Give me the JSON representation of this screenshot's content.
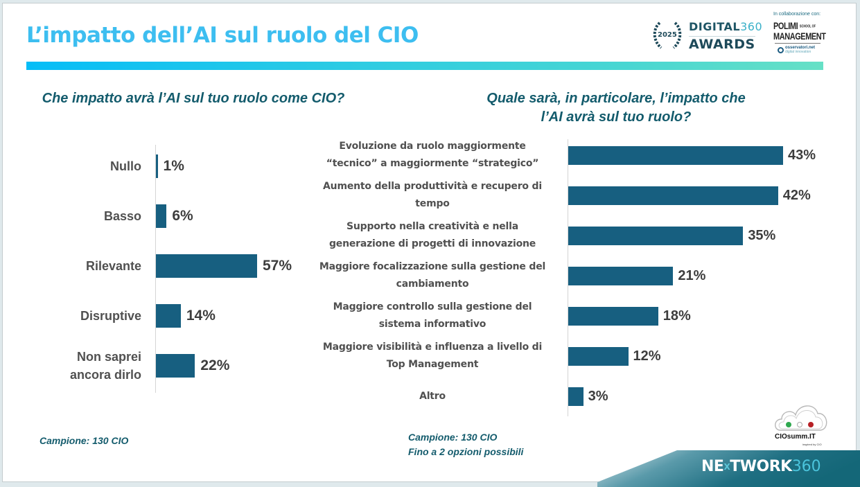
{
  "header": {
    "title": "L’impatto dell’AI sul ruolo del CIO",
    "awards_logo": {
      "year": "2025",
      "digital": "DIGITAL",
      "digital_num": "360",
      "awards": "AWARDS"
    },
    "collab": {
      "label": "In collaborazione con:",
      "polimi_line1": "POLIMI",
      "polimi_small": "SCHOOL OF",
      "polimi_line2": "MANAGEMENT",
      "osservatori": "osservatori.net",
      "osservatori_sub": "digital innovation"
    }
  },
  "colors": {
    "title": "#3dbef0",
    "question": "#135b6c",
    "bar": "#175f80",
    "category_text": "#505050",
    "value_text": "#3d3d3d"
  },
  "chart_data": [
    {
      "type": "bar",
      "orientation": "horizontal",
      "title": "Che impatto avrà l’AI sul tuo ruolo come CIO?",
      "categories": [
        "Nullo",
        "Basso",
        "Rilevante",
        "Disruptive",
        "Non saprei ancora dirlo"
      ],
      "values": [
        1,
        6,
        57,
        14,
        22
      ],
      "value_labels": [
        "1%",
        "6%",
        "57%",
        "14%",
        "22%"
      ],
      "unit": "%",
      "xlim": [
        0,
        57
      ],
      "grid": false,
      "legend": "none",
      "note": "Campione: 130 CIO"
    },
    {
      "type": "bar",
      "orientation": "horizontal",
      "title": "Quale sarà, in particolare, l’impatto che l’AI avrà sul tuo ruolo?",
      "categories": [
        "Evoluzione da ruolo maggiormente “tecnico” a maggiormente “strategico”",
        "Aumento della produttività e recupero di tempo",
        "Supporto nella creatività e nella generazione di progetti di innovazione",
        "Maggiore focalizzazione sulla gestione del cambiamento",
        "Maggiore controllo sulla gestione del sistema informativo",
        "Maggiore visibilità e influenza a livello di Top Management",
        "Altro"
      ],
      "values": [
        43,
        42,
        35,
        21,
        18,
        12,
        3
      ],
      "value_labels": [
        "43%",
        "42%",
        "35%",
        "21%",
        "18%",
        "12%",
        "3%"
      ],
      "unit": "%",
      "xlim": [
        0,
        43
      ],
      "grid": false,
      "legend": "none",
      "note": "Campione: 130 CIO\nFino a 2 opzioni possibili"
    }
  ],
  "left": {
    "question": "Che impatto avrà l’AI sul tuo ruolo come CIO?",
    "category_lines": [
      [
        "Nullo"
      ],
      [
        "Basso"
      ],
      [
        "Rilevante"
      ],
      [
        "Disruptive"
      ],
      [
        "Non saprei",
        "ancora dirlo"
      ]
    ],
    "note": "Campione: 130 CIO"
  },
  "right": {
    "question_line1": "Quale sarà, in particolare, l’impatto che",
    "question_line2": "l’AI avrà sul tuo ruolo?",
    "category_lines": [
      [
        "Evoluzione da ruolo maggiormente",
        "“tecnico” a maggiormente “strategico”"
      ],
      [
        "Aumento della produttività e recupero di",
        "tempo"
      ],
      [
        "Supporto nella creatività e nella",
        "generazione di progetti di innovazione"
      ],
      [
        "Maggiore focalizzazione sulla gestione del",
        "cambiamento"
      ],
      [
        "Maggiore controllo sulla gestione del",
        "sistema informativo"
      ],
      [
        "Maggiore visibilità e influenza a livello di",
        "Top Management"
      ],
      [
        "Altro"
      ]
    ],
    "note_line1": "Campione: 130 CIO",
    "note_line2": "Fino a 2 opzioni possibili"
  },
  "footer": {
    "cio_logo": {
      "name": "CIOsumm.IT",
      "sub": "inspired by CIO"
    },
    "network": {
      "pre": "NE",
      "x": "X",
      "post": "TWORK",
      "num": "360"
    }
  }
}
